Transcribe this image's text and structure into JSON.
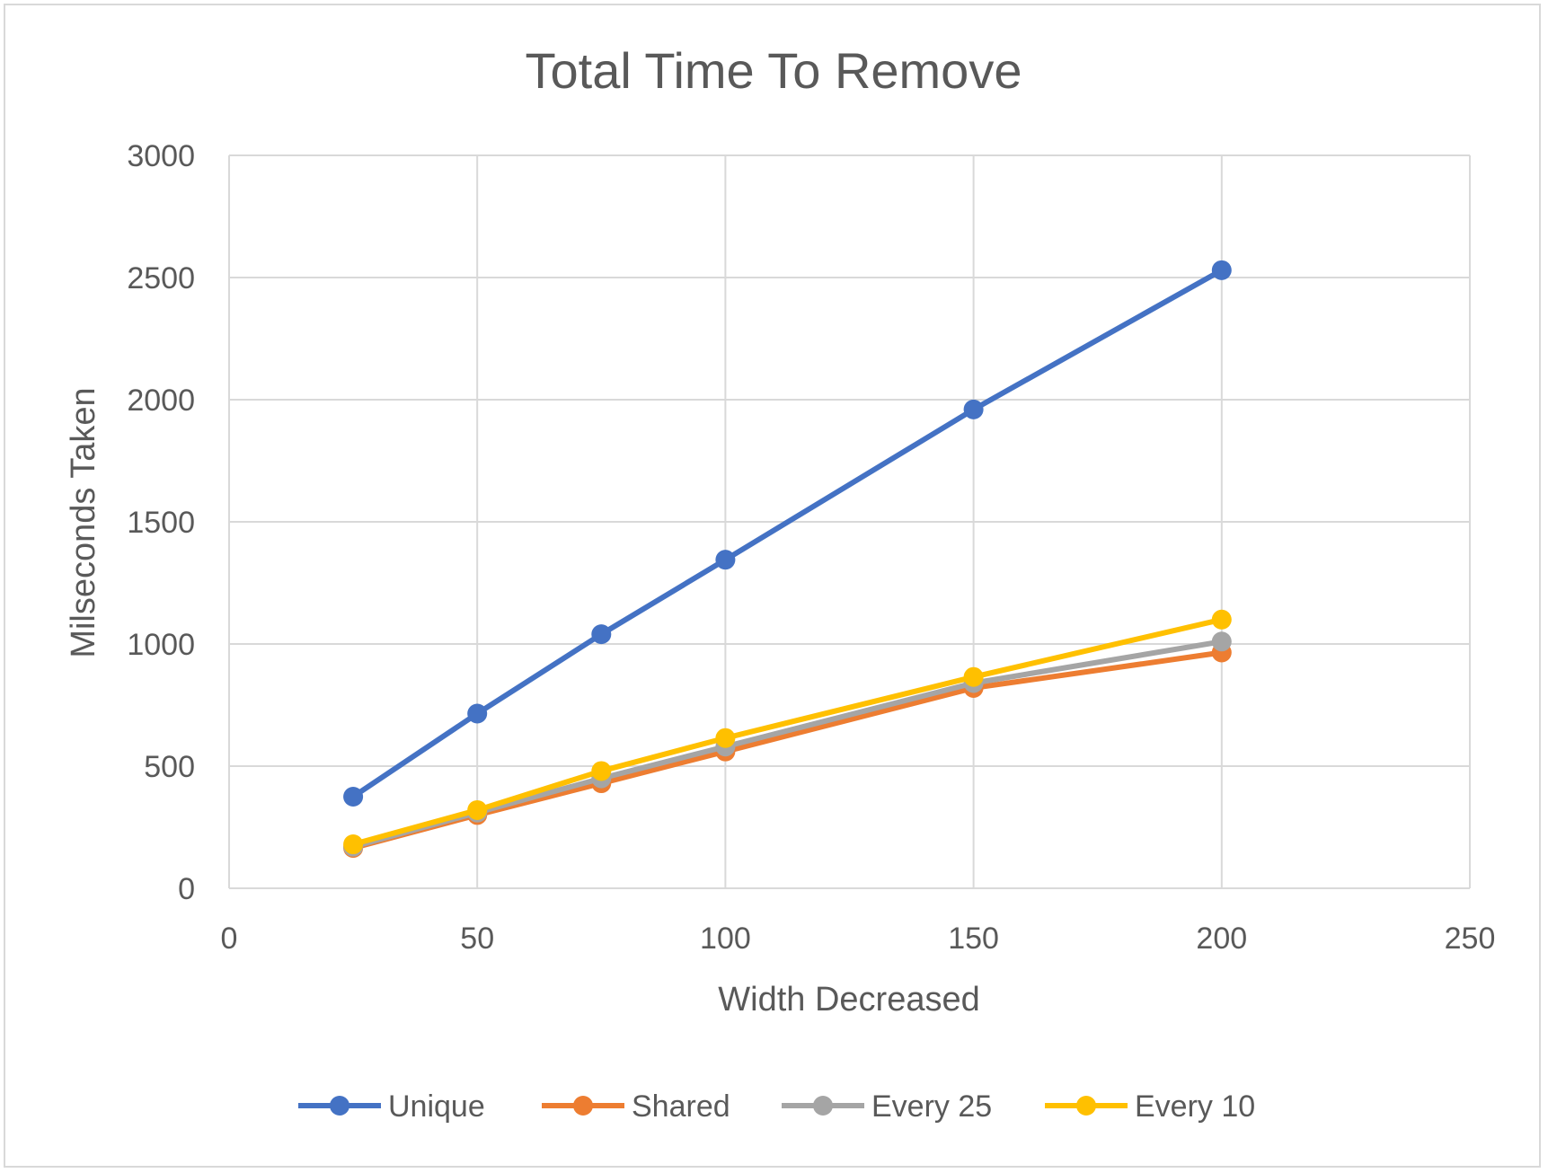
{
  "chart_data": {
    "type": "line",
    "title": "Total Time To Remove",
    "xlabel": "Width Decreased",
    "ylabel": "Milseconds Taken",
    "xlim": [
      0,
      250
    ],
    "ylim": [
      0,
      3000
    ],
    "x_ticks": [
      0,
      50,
      100,
      150,
      200,
      250
    ],
    "y_ticks": [
      0,
      500,
      1000,
      1500,
      2000,
      2500,
      3000
    ],
    "grid": true,
    "legend_position": "bottom",
    "x": [
      25,
      50,
      75,
      100,
      150,
      200
    ],
    "series": [
      {
        "name": "Unique",
        "color": "#4472c4",
        "values": [
          375,
          715,
          1040,
          1345,
          1960,
          2530
        ]
      },
      {
        "name": "Shared",
        "color": "#ed7d31",
        "values": [
          165,
          300,
          430,
          560,
          820,
          965
        ]
      },
      {
        "name": "Every 25",
        "color": "#a5a5a5",
        "values": [
          170,
          310,
          450,
          580,
          840,
          1010
        ]
      },
      {
        "name": "Every 10",
        "color": "#ffc000",
        "values": [
          180,
          320,
          480,
          615,
          865,
          1100
        ]
      }
    ]
  }
}
